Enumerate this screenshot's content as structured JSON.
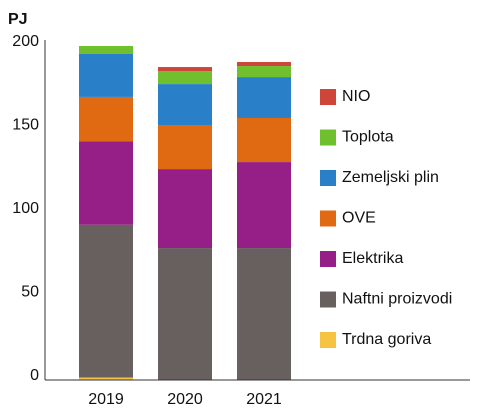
{
  "chart_data": {
    "type": "stacked-bar",
    "ylabel": "PJ",
    "categories": [
      "2019",
      "2020",
      "2021"
    ],
    "series": [
      {
        "name": "Trdna goriva",
        "color": "#f7c343",
        "values": [
          1.5,
          0,
          0
        ]
      },
      {
        "name": "Naftni proizvodi",
        "color": "#68605f",
        "values": [
          91.5,
          79,
          79
        ]
      },
      {
        "name": "Elektrika",
        "color": "#951f86",
        "values": [
          50,
          47.3,
          51.5
        ]
      },
      {
        "name": "OVE",
        "color": "#e06a12",
        "values": [
          26.5,
          26.4,
          26.4
        ]
      },
      {
        "name": "Zemeljski plin",
        "color": "#2a7fc9",
        "values": [
          25.7,
          24.5,
          24.5
        ]
      },
      {
        "name": "Toplota",
        "color": "#6fbf2e",
        "values": [
          4.8,
          7.8,
          6.6
        ]
      },
      {
        "name": "NIO",
        "color": "#d0453a",
        "values": [
          0,
          2.4,
          2.4
        ]
      }
    ],
    "ylim": [
      0,
      200
    ],
    "yticks": [
      0,
      50,
      100,
      150,
      200
    ],
    "grid": false
  }
}
